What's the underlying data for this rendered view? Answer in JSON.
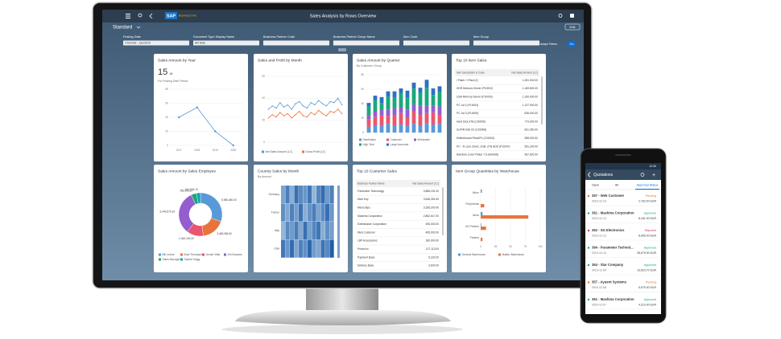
{
  "shell": {
    "brand": "SAP",
    "product": "Business One",
    "title": "Sales Analysis by Rows Overview",
    "edit": "Edit"
  },
  "variant": "Standard",
  "filters": [
    {
      "label": "Posting Date",
      "value": "3 Months - Jan/2019"
    },
    {
      "label": "Document Type Display Name",
      "value": "AR Note"
    },
    {
      "label": "Business Partner Code"
    },
    {
      "label": "Business Partner Group Name"
    },
    {
      "label": "Item Code"
    },
    {
      "label": "Item Group"
    }
  ],
  "adapt_filters": "Adapt Filters",
  "go": "Go",
  "cards": [
    {
      "title": "Sales Amount by Year",
      "kpi": "15",
      "kpi_unit": "M",
      "subtitle": "For Posting Date Period",
      "chart": {
        "type": "line",
        "markers": true,
        "color": "#5899da",
        "categories": [
          "2017",
          "2018",
          "2019",
          "2020"
        ],
        "values": [
          40,
          54,
          20,
          0
        ],
        "ylim": [
          0,
          80
        ],
        "yticks": [
          0,
          20,
          40,
          60,
          80
        ]
      }
    },
    {
      "title": "Sales and Profit by Month",
      "chart": {
        "type": "line",
        "markers": true,
        "ylim": [
          0,
          60
        ],
        "yticks": [
          0,
          20,
          40,
          60
        ],
        "series": [
          {
            "name": "Net Sales Amount (LC)",
            "color": "#5899da",
            "values": [
              30,
              33,
              31,
              36,
              32,
              34,
              30,
              35,
              37,
              33,
              31,
              36,
              34,
              38,
              35,
              33,
              37,
              36,
              40,
              34
            ]
          },
          {
            "name": "Gross Profit (LC)",
            "color": "#e8743b",
            "values": [
              22,
              25,
              23,
              27,
              24,
              26,
              22,
              25,
              28,
              24,
              23,
              27,
              25,
              29,
              26,
              24,
              28,
              27,
              30,
              26
            ]
          }
        ]
      }
    },
    {
      "title": "Sales Amount by Quarter",
      "subtitle": "By Customer Group",
      "chart": {
        "type": "stacked-bar",
        "ylim": [
          0,
          80
        ],
        "yticks": [
          0,
          20,
          40,
          60,
          80
        ],
        "series": [
          {
            "name": "Distribution",
            "color": "#5899da",
            "values": [
              8,
              10,
              9,
              12,
              10,
              11,
              9,
              12,
              10,
              13,
              11,
              12
            ]
          },
          {
            "name": "Customer",
            "color": "#e8576f",
            "values": [
              10,
              12,
              15,
              11,
              14,
              16,
              12,
              18,
              15,
              14,
              17,
              13
            ]
          },
          {
            "name": "Wholesale",
            "color": "#945ecf",
            "values": [
              6,
              8,
              7,
              9,
              10,
              8,
              11,
              9,
              12,
              10,
              9,
              11
            ]
          },
          {
            "name": "High Tech",
            "color": "#19a979",
            "values": [
              12,
              15,
              10,
              18,
              14,
              20,
              16,
              22,
              18,
              25,
              15,
              20
            ]
          },
          {
            "name": "Large Accounts",
            "color": "#2f6fc2",
            "values": [
              5,
              6,
              8,
              7,
              9,
              6,
              10,
              8,
              7,
              11,
              9,
              8
            ]
          }
        ]
      }
    },
    {
      "title": "Top 10 Item Sales",
      "table": {
        "columns": [
          "Item Description & Code",
          "Net Sales Amount (LC)"
        ],
        "rows": [
          [
            "I Flash / I Flash (I)",
            "1,281,000.00"
          ],
          [
            "DDR Memory Server (P10002)",
            "1,169,800.00"
          ],
          [
            "USB Memory Server (P10003)",
            "1,160,000.00"
          ],
          [
            "PC 1st 2 (P10004)",
            "1,127,900.00"
          ],
          [
            "PC 1st 3 (P10005)",
            "838,000.00"
          ],
          [
            "Hard Disk 3TB (C00005)",
            "773,000.00"
          ],
          [
            "SUPIR 6X8 CD (C00008)",
            "661,050.00"
          ],
          [
            "Motherboard PlusAPX (C00002)",
            "558,000.00"
          ],
          [
            "PC - 4x core 3GHz, 2GB, 2TB HDD (P10007)",
            "551,240.00"
          ],
          [
            "Rainbow Color Printer 7.5 (A00005)",
            "567,500.00"
          ]
        ]
      }
    },
    {
      "title": "Sales Amount by Sales Employee",
      "chart": {
        "type": "donut",
        "categories": [
          "Bill Levine",
          "Brad Thompson",
          "Jennie Villar",
          "Jim Boswick",
          "Sales Manager",
          "Sophie Klogg"
        ],
        "values": [
          5986480.0,
          3485086.5,
          2462150.2,
          6440676.33,
          785093.22,
          612004.1
        ],
        "value_labels": [
          "5,986,480.00",
          "3,485,086.50",
          "2,462,150.20",
          "6,440,676.33",
          "785,093.22",
          "612,004.10"
        ],
        "colors": [
          "#5899da",
          "#e8743b",
          "#e8576f",
          "#945ecf",
          "#19a979",
          "#13a4b4"
        ]
      }
    },
    {
      "title": "Country Sales by Month",
      "subtitle": "By Amount",
      "chart": {
        "type": "heatmap",
        "rows": [
          "Germany",
          "France",
          "Italy",
          "USA"
        ],
        "colors": [
          "#dbe9f7",
          "#1f5fa8"
        ],
        "values": [
          [
            40,
            62,
            35,
            70,
            55,
            48,
            66,
            30,
            58,
            72,
            45,
            60
          ],
          [
            52,
            38,
            60,
            44,
            68,
            35,
            50,
            62,
            40,
            55,
            70,
            48
          ],
          [
            30,
            55,
            45,
            62,
            38,
            70,
            42,
            58,
            66,
            35,
            52,
            44
          ],
          [
            65,
            48,
            72,
            40,
            60,
            52,
            75,
            45,
            38,
            68,
            56,
            80
          ]
        ]
      }
    },
    {
      "title": "Top 10 Customer Sales",
      "table": {
        "columns": [
          "Business Partner Name",
          "Net Sales Amount (LC)"
        ],
        "rows": [
          [
            "Parameter Technology",
            "3,886,152.20"
          ],
          [
            "Mexi Key",
            "3,536,281.50"
          ],
          [
            "Microchips",
            "3,336,200.00"
          ],
          [
            "Mashina Corporation",
            "2,862,617.00"
          ],
          [
            "Earthshaker Corporation",
            "495,000.00"
          ],
          [
            "Web Customer",
            "405,000.00"
          ],
          [
            "LBP Accessories",
            "180,000.00"
          ],
          [
            "Prima Inc",
            "127,113.00"
          ],
          [
            "Payment Base",
            "5,232.00"
          ],
          [
            "Delivery Base",
            "3,600.00"
          ]
        ]
      }
    },
    {
      "title": "Item Group Quantities by Warehouse",
      "chart": {
        "type": "hbar",
        "categories": [
          "Micro",
          "Peripherals",
          "Items",
          "HD Printers",
          "Printers"
        ],
        "xlim": [
          0,
          100
        ],
        "xticks": [
          0,
          25,
          50,
          75,
          100
        ],
        "series": [
          {
            "name": "General Warehouse",
            "color": "#5899da",
            "values": [
              2,
              0,
              3,
              1,
              0
            ]
          },
          {
            "name": "Malibu Warehouse",
            "color": "#e8743b",
            "values": [
              0,
              6,
              80,
              9,
              3
            ]
          }
        ]
      }
    }
  ],
  "phone": {
    "time": "12:30",
    "title": "Quotations",
    "tabs": [
      "Open",
      "All",
      "Approval Status"
    ],
    "items": [
      {
        "title": "357 - Web Customer",
        "date": "2019-12-14",
        "status": "Pending",
        "color": "#e8743b",
        "amount": "2,763.00 EUR"
      },
      {
        "title": "361 - Mashina Corporation",
        "date": "2019-12-13",
        "status": "Approved",
        "color": "#19a979",
        "amount": "8,431.00 EUR"
      },
      {
        "title": "362 - SG Electronics",
        "date": "2019-12-12",
        "status": "Rejected",
        "color": "#d9364c",
        "amount": "8,695.00 EUR"
      },
      {
        "title": "384 - Parameter Technol...",
        "date": "2019-12-10",
        "status": "Approved",
        "color": "#19a979",
        "amount": "28,675.00 EUR"
      },
      {
        "title": "364 - Star Company",
        "date": "2019-12-09",
        "status": "Approved",
        "color": "#19a979",
        "amount": "13,623.70 EUR"
      },
      {
        "title": "357 - Ayuent Systems",
        "date": "2019-12-08",
        "status": "Pending",
        "color": "#e8743b",
        "amount": "5,675.00 EUR"
      },
      {
        "title": "361 - Mashina Corporation",
        "date": "2019-12-07",
        "status": "Approved",
        "color": "#19a979",
        "amount": "4,210.00 EUR"
      }
    ]
  }
}
